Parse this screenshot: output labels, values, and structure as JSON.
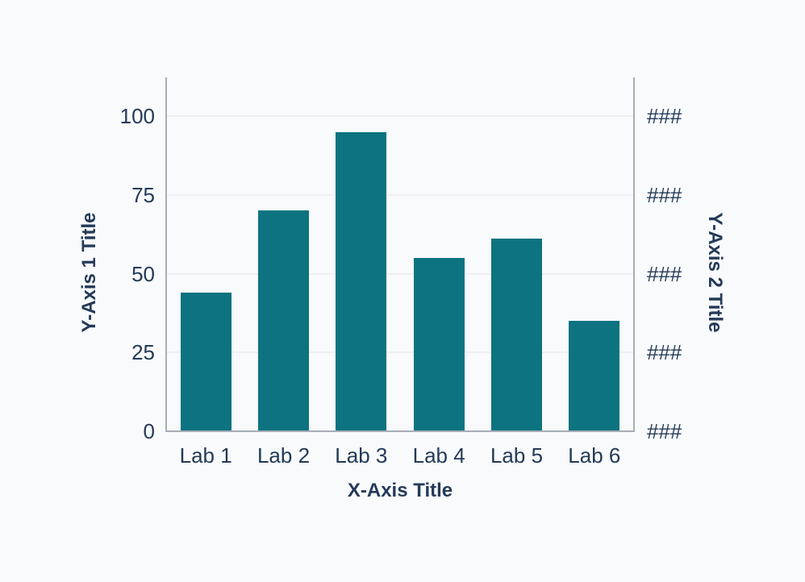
{
  "chart": {
    "background_color": "#f8fafc",
    "bar_color": "#0d7380",
    "axis_line_color": "#a6adb8",
    "gridline_color": "#edeff3",
    "text_color": "#243a57"
  },
  "chart_data": {
    "type": "bar",
    "categories": [
      "Lab 1",
      "Lab 2",
      "Lab 3",
      "Lab 4",
      "Lab 5",
      "Lab 6"
    ],
    "values": [
      44,
      70,
      95,
      55,
      61,
      35
    ],
    "title": "",
    "xlabel": "X-Axis Title",
    "ylabel": "Y-Axis 1 Title",
    "ylabel2": "Y-Axis 2 Title",
    "ylim": [
      0,
      100
    ],
    "y_ticks": [
      0,
      25,
      50,
      75,
      100
    ],
    "y_tick_labels": [
      "0",
      "25",
      "50",
      "75",
      "100"
    ],
    "y2_tick_labels": [
      "###",
      "###",
      "###",
      "###",
      "###"
    ],
    "grid": true,
    "legend": false,
    "bar_color": "#0d7380"
  }
}
